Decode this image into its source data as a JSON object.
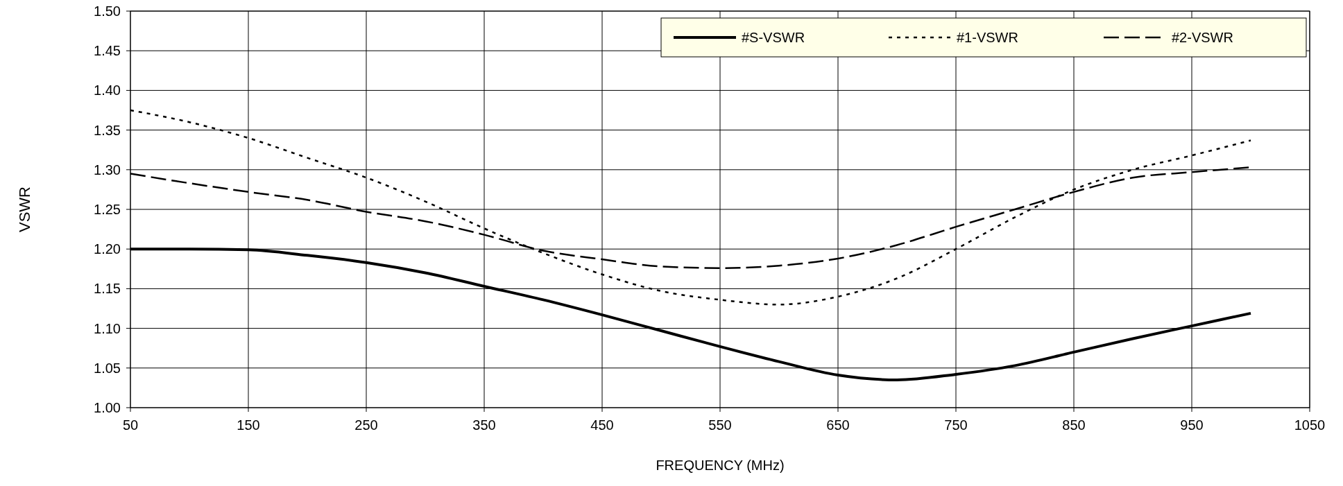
{
  "chart_data": {
    "type": "line",
    "xlabel": "FREQUENCY (MHz)",
    "ylabel": "VSWR",
    "xlim": [
      50,
      1050
    ],
    "xticks": [
      50,
      150,
      250,
      350,
      450,
      550,
      650,
      750,
      850,
      950,
      1050
    ],
    "ylim": [
      1.0,
      1.5
    ],
    "yticks": [
      {
        "value": 1.0,
        "label": "1.00"
      },
      {
        "value": 1.05,
        "label": "1.05"
      },
      {
        "value": 1.1,
        "label": "1.10"
      },
      {
        "value": 1.15,
        "label": "1.15"
      },
      {
        "value": 1.2,
        "label": "1.20"
      },
      {
        "value": 1.25,
        "label": "1.25"
      },
      {
        "value": 1.3,
        "label": "1.30"
      },
      {
        "value": 1.35,
        "label": "1.35"
      },
      {
        "value": 1.4,
        "label": "1.40"
      },
      {
        "value": 1.45,
        "label": "1.45"
      },
      {
        "value": 1.5,
        "label": "1.50"
      }
    ],
    "grid": true,
    "legend": "top right",
    "x": [
      50,
      100,
      150,
      200,
      250,
      300,
      350,
      400,
      450,
      500,
      550,
      600,
      650,
      700,
      750,
      800,
      850,
      900,
      950,
      1000
    ],
    "series": [
      {
        "name": "#S-VSWR",
        "color": "#000000",
        "line_style": "solid",
        "values": [
          1.2,
          1.2,
          1.199,
          1.192,
          1.183,
          1.17,
          1.153,
          1.136,
          1.117,
          1.097,
          1.077,
          1.058,
          1.041,
          1.035,
          1.042,
          1.053,
          1.07,
          1.087,
          1.103,
          1.119
        ]
      },
      {
        "name": "#1-VSWR",
        "color": "#000000",
        "line_style": "dotted",
        "values": [
          1.375,
          1.36,
          1.34,
          1.315,
          1.29,
          1.26,
          1.226,
          1.195,
          1.168,
          1.147,
          1.136,
          1.13,
          1.14,
          1.163,
          1.2,
          1.24,
          1.275,
          1.3,
          1.318,
          1.337
        ]
      },
      {
        "name": "#2-VSWR",
        "color": "#000000",
        "line_style": "dashed",
        "values": [
          1.295,
          1.283,
          1.272,
          1.262,
          1.247,
          1.235,
          1.218,
          1.198,
          1.187,
          1.178,
          1.176,
          1.179,
          1.188,
          1.205,
          1.228,
          1.25,
          1.272,
          1.29,
          1.297,
          1.303
        ]
      }
    ]
  }
}
